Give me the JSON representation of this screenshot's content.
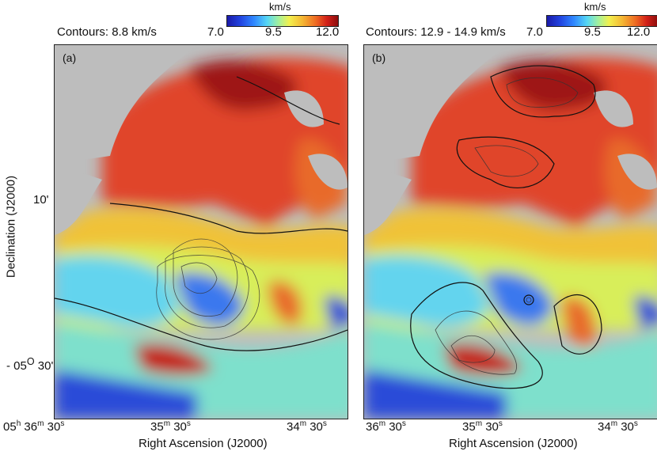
{
  "colorbar": {
    "unit": "km/s",
    "ticks": [
      "7.0",
      "9.5",
      "12.0"
    ]
  },
  "panels": [
    {
      "tag": "(a)",
      "caption": "Contours: 8.8 km/s"
    },
    {
      "tag": "(b)",
      "caption": "Contours: 12.9 - 14.9 km/s"
    }
  ],
  "axes": {
    "xlabel": "Right Ascension (J2000)",
    "ylabel": "Declination (J2000)",
    "y_ticks": [
      {
        "text": "10'"
      },
      {
        "text": "- 05",
        "sup": "O",
        "after": " 30'"
      }
    ],
    "x_ticks_a": [
      {
        "h": "05",
        "hu": "h",
        "m": "36",
        "mu": "m",
        "s": "30",
        "su": "s"
      },
      {
        "m": "35",
        "mu": "m",
        "s": "30",
        "su": "s"
      },
      {
        "m": "34",
        "mu": "m",
        "s": "30",
        "su": "s"
      }
    ],
    "x_ticks_b": [
      {
        "m": "36",
        "mu": "m",
        "s": "30",
        "su": "s"
      },
      {
        "m": "35",
        "mu": "m",
        "s": "30",
        "su": "s"
      },
      {
        "m": "34",
        "mu": "m",
        "s": "30",
        "su": "s"
      }
    ]
  },
  "colors": {
    "low": "#1a1aa8",
    "mid": "#f2f04e",
    "high": "#8c0d0d",
    "masked": "#bdbdbd"
  }
}
